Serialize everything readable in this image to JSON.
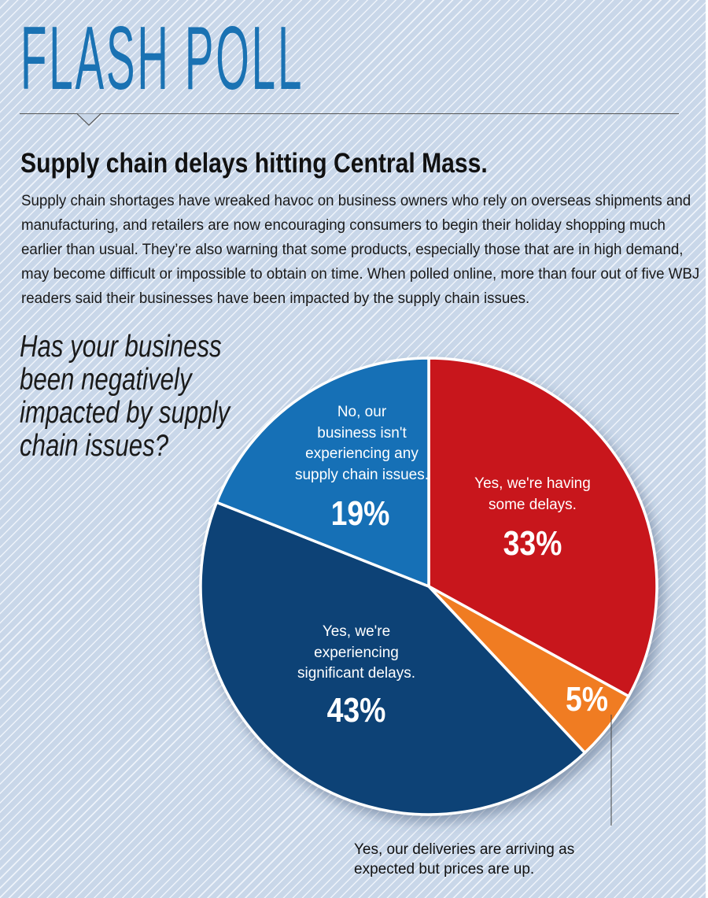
{
  "header": {
    "title": "FLASH POLL"
  },
  "headline": "Supply chain delays hitting Central Mass.",
  "intro": "Supply chain shortages have wreaked havoc on business owners who rely on overseas shipments and manufacturing, and retailers are now encouraging consumers to begin their holiday shopping much earlier than usual. They’re also warning that some products, especially those that are in high demand, may become difficult or impossible to obtain on time. When polled online, more than four out of five WBJ readers said their businesses have been impacted by the supply chain issues.",
  "question_lines": [
    "Has your business",
    "been negatively",
    "impacted by supply",
    "chain issues?"
  ],
  "chart_data": {
    "type": "pie",
    "title": "Has your business been negatively impacted by supply chain issues?",
    "start": "12 o'clock, clockwise",
    "slices": [
      {
        "label": "Yes, we're having some delays.",
        "label_lines": [
          "Yes, we're having",
          "some delays."
        ],
        "value": 33,
        "value_label": "33%",
        "color": "#c8161d"
      },
      {
        "label": "Yes, our deliveries are arriving as expected but prices are up.",
        "label_lines": [
          "Yes, our deliveries are arriving as",
          "expected but prices are up."
        ],
        "value": 5,
        "value_label": "5%",
        "color": "#f07b22"
      },
      {
        "label": "Yes, we're experiencing significant delays.",
        "label_lines": [
          "Yes, we're",
          "experiencing",
          "significant delays."
        ],
        "value": 43,
        "value_label": "43%",
        "color": "#0d4276"
      },
      {
        "label": "No, our business isn't experiencing any supply chain issues.",
        "label_lines": [
          "No, our",
          "business isn't",
          "experiencing any",
          "supply chain issues."
        ],
        "value": 19,
        "value_label": "19%",
        "color": "#1470b6"
      }
    ]
  }
}
